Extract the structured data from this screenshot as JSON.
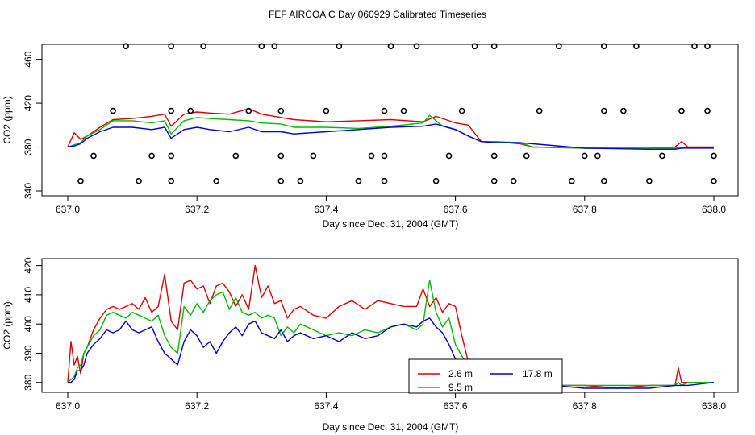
{
  "title": "FEF AIRCOA C  Day 060929  Calibrated Timeseries",
  "colors": {
    "2.6 m": "#dd0000",
    "9.5 m": "#00bb00",
    "17.8 m": "#0000cc",
    "flags": "#000000"
  },
  "chart_data": [
    {
      "type": "line",
      "xlabel": "Day since Dec. 31, 2004 (GMT)",
      "ylabel": "CO2 (ppm)",
      "xlim": [
        637.0,
        638.0
      ],
      "ylim": [
        340,
        470
      ],
      "xticks": [
        "637.0",
        "637.2",
        "637.4",
        "637.6",
        "637.8",
        "638.0"
      ],
      "yticks": [
        "340",
        "380",
        "420",
        "460"
      ],
      "grid": false,
      "series": [
        {
          "name": "2.6 m",
          "x": [
            637.0,
            637.01,
            637.02,
            637.03,
            637.05,
            637.07,
            637.1,
            637.13,
            637.15,
            637.16,
            637.18,
            637.2,
            637.22,
            637.25,
            637.28,
            637.3,
            637.33,
            637.35,
            637.4,
            637.45,
            637.5,
            637.55,
            637.57,
            637.6,
            637.62,
            637.64,
            637.66,
            637.7,
            637.72,
            637.8,
            637.9,
            637.94,
            637.95,
            637.96,
            638.0
          ],
          "values": [
            380,
            393,
            387,
            390,
            398,
            405,
            406,
            408,
            410,
            399,
            410,
            412,
            411,
            410,
            415,
            410,
            407,
            405,
            403,
            404,
            405,
            403,
            408,
            402,
            400,
            385,
            385,
            383,
            380,
            379,
            379,
            380,
            385,
            380,
            380
          ]
        },
        {
          "name": "9.5 m",
          "x": [
            637.0,
            637.01,
            637.02,
            637.03,
            637.05,
            637.07,
            637.1,
            637.13,
            637.15,
            637.16,
            637.18,
            637.2,
            637.22,
            637.25,
            637.28,
            637.3,
            637.33,
            637.35,
            637.4,
            637.45,
            637.5,
            637.55,
            637.56,
            637.58,
            637.6,
            637.62,
            637.64,
            637.66,
            637.7,
            637.72,
            637.8,
            637.9,
            637.94,
            637.95,
            637.96,
            638.0
          ],
          "values": [
            380,
            382,
            384,
            390,
            396,
            404,
            404,
            402,
            404,
            392,
            404,
            407,
            406,
            405,
            404,
            402,
            401,
            398,
            398,
            397,
            399,
            402,
            409,
            399,
            396,
            390,
            385,
            385,
            384,
            380,
            379,
            379,
            379,
            380,
            379,
            380
          ]
        },
        {
          "name": "17.8 m",
          "x": [
            637.0,
            637.01,
            637.02,
            637.03,
            637.05,
            637.07,
            637.1,
            637.13,
            637.15,
            637.16,
            637.18,
            637.2,
            637.22,
            637.25,
            637.28,
            637.3,
            637.33,
            637.35,
            637.4,
            637.45,
            637.5,
            637.55,
            637.57,
            637.6,
            637.62,
            637.64,
            637.66,
            637.7,
            637.72,
            637.8,
            637.9,
            637.94,
            637.95,
            637.96,
            638.0
          ],
          "values": [
            380,
            381,
            383,
            388,
            394,
            398,
            398,
            396,
            398,
            388,
            396,
            398,
            396,
            394,
            398,
            394,
            394,
            392,
            394,
            396,
            398,
            399,
            401,
            396,
            390,
            385,
            384,
            384,
            383,
            379,
            378,
            378,
            379,
            379,
            379
          ]
        }
      ],
      "flags": {
        "x": [
          637.09,
          637.16,
          637.21,
          637.3,
          637.32,
          637.42,
          637.5,
          637.54,
          637.63,
          637.66,
          637.76,
          637.83,
          637.88,
          637.97,
          637.99,
          637.07,
          637.16,
          637.19,
          637.28,
          637.33,
          637.4,
          637.49,
          637.52,
          637.61,
          637.73,
          637.83,
          637.86,
          637.95,
          637.99,
          637.04,
          637.13,
          637.16,
          637.26,
          637.33,
          637.38,
          637.47,
          637.49,
          637.59,
          637.66,
          637.71,
          637.8,
          637.82,
          637.92,
          638.0,
          637.02,
          637.11,
          637.16,
          637.23,
          637.33,
          637.36,
          637.45,
          637.49,
          637.57,
          637.66,
          637.69,
          637.78,
          637.83,
          637.9,
          638.0
        ],
        "values": [
          472,
          472,
          472,
          472,
          472,
          472,
          472,
          472,
          472,
          472,
          472,
          472,
          472,
          472,
          472,
          413,
          413,
          413,
          413,
          413,
          413,
          413,
          413,
          413,
          413,
          413,
          413,
          413,
          413,
          372,
          372,
          372,
          372,
          372,
          372,
          372,
          372,
          372,
          372,
          372,
          372,
          372,
          372,
          372,
          349,
          349,
          349,
          349,
          349,
          349,
          349,
          349,
          349,
          349,
          349,
          349,
          349,
          349,
          349
        ]
      }
    },
    {
      "type": "line",
      "xlabel": "Day since Dec. 31, 2004 (GMT)",
      "ylabel": "CO2 (ppm)",
      "xlim": [
        637.0,
        638.0
      ],
      "ylim": [
        378,
        421
      ],
      "xticks": [
        "637.0",
        "637.2",
        "637.4",
        "637.6",
        "637.8",
        "638.0"
      ],
      "yticks": [
        "380",
        "390",
        "400",
        "410",
        "420"
      ],
      "grid": false,
      "legend": {
        "position": "bottom-center",
        "entries": [
          "2.6 m",
          "9.5 m",
          "17.8 m"
        ]
      },
      "series": [
        {
          "name": "2.6 m",
          "x": [
            637.0,
            637.005,
            637.01,
            637.015,
            637.02,
            637.025,
            637.03,
            637.04,
            637.05,
            637.06,
            637.07,
            637.08,
            637.09,
            637.1,
            637.11,
            637.12,
            637.13,
            637.14,
            637.15,
            637.16,
            637.17,
            637.18,
            637.19,
            637.2,
            637.21,
            637.22,
            637.23,
            637.24,
            637.25,
            637.26,
            637.27,
            637.28,
            637.29,
            637.3,
            637.31,
            637.32,
            637.33,
            637.34,
            637.35,
            637.36,
            637.38,
            637.4,
            637.42,
            637.44,
            637.46,
            637.48,
            637.5,
            637.52,
            637.54,
            637.55,
            637.56,
            637.57,
            637.58,
            637.59,
            637.6,
            637.61,
            637.62,
            637.63,
            637.64,
            637.65,
            637.67,
            637.69,
            637.7,
            637.71,
            637.72,
            637.75,
            637.8,
            637.85,
            637.9,
            637.94,
            637.945,
            637.95,
            637.96,
            638.0
          ],
          "values": [
            380,
            394,
            386,
            389,
            383,
            390,
            392,
            398,
            402,
            405,
            406,
            405,
            406,
            407,
            405,
            409,
            404,
            406,
            417,
            401,
            398,
            414,
            415,
            412,
            413,
            407,
            413,
            414,
            411,
            406,
            410,
            405,
            420,
            409,
            413,
            407,
            408,
            402,
            405,
            406,
            403,
            402,
            406,
            408,
            405,
            408,
            407,
            406,
            406,
            412,
            406,
            409,
            404,
            407,
            406,
            396,
            387,
            385,
            384,
            385,
            384,
            386,
            385,
            383,
            380,
            379,
            379,
            378,
            379,
            379,
            385,
            380,
            380,
            380
          ]
        },
        {
          "name": "9.5 m",
          "x": [
            637.0,
            637.005,
            637.01,
            637.015,
            637.02,
            637.025,
            637.03,
            637.04,
            637.05,
            637.06,
            637.07,
            637.08,
            637.09,
            637.1,
            637.11,
            637.12,
            637.13,
            637.14,
            637.15,
            637.16,
            637.17,
            637.18,
            637.19,
            637.2,
            637.21,
            637.22,
            637.23,
            637.24,
            637.25,
            637.26,
            637.27,
            637.28,
            637.29,
            637.3,
            637.31,
            637.32,
            637.33,
            637.34,
            637.35,
            637.36,
            637.38,
            637.4,
            637.42,
            637.44,
            637.46,
            637.48,
            637.5,
            637.52,
            637.54,
            637.55,
            637.56,
            637.57,
            637.58,
            637.59,
            637.6,
            637.61,
            637.62,
            637.63,
            637.64,
            637.65,
            637.67,
            637.69,
            637.7,
            637.71,
            637.72,
            637.75,
            637.8,
            637.85,
            637.9,
            637.94,
            637.945,
            637.95,
            637.96,
            638.0
          ],
          "values": [
            380,
            381,
            382,
            385,
            386,
            390,
            392,
            396,
            398,
            403,
            404,
            403,
            402,
            404,
            403,
            402,
            401,
            403,
            396,
            392,
            390,
            406,
            403,
            407,
            404,
            408,
            410,
            411,
            405,
            409,
            404,
            403,
            404,
            402,
            403,
            402,
            396,
            399,
            397,
            400,
            398,
            396,
            397,
            396,
            398,
            397,
            399,
            400,
            398,
            400,
            415,
            404,
            399,
            402,
            393,
            389,
            386,
            385,
            384,
            384,
            385,
            385,
            385,
            382,
            380,
            379,
            379,
            379,
            379,
            379,
            380,
            379,
            380,
            380
          ]
        },
        {
          "name": "17.8 m",
          "x": [
            637.0,
            637.005,
            637.01,
            637.015,
            637.02,
            637.025,
            637.03,
            637.04,
            637.05,
            637.06,
            637.07,
            637.08,
            637.09,
            637.1,
            637.11,
            637.12,
            637.13,
            637.14,
            637.15,
            637.16,
            637.17,
            637.18,
            637.19,
            637.2,
            637.21,
            637.22,
            637.23,
            637.24,
            637.25,
            637.26,
            637.27,
            637.28,
            637.29,
            637.3,
            637.31,
            637.32,
            637.33,
            637.34,
            637.35,
            637.36,
            637.38,
            637.4,
            637.42,
            637.44,
            637.46,
            637.48,
            637.5,
            637.52,
            637.54,
            637.55,
            637.56,
            637.57,
            637.58,
            637.59,
            637.6,
            637.61,
            637.62,
            637.63,
            637.64,
            637.65,
            637.67,
            637.69,
            637.7,
            637.71,
            637.72,
            637.75,
            637.8,
            637.85,
            637.9,
            637.94,
            637.945,
            637.95,
            637.96,
            638.0
          ],
          "values": [
            380,
            380,
            381,
            384,
            384,
            386,
            390,
            393,
            395,
            398,
            397,
            398,
            401,
            398,
            397,
            398,
            399,
            394,
            390,
            388,
            386,
            394,
            398,
            396,
            392,
            394,
            390,
            394,
            397,
            399,
            396,
            400,
            401,
            397,
            396,
            395,
            398,
            394,
            396,
            397,
            395,
            396,
            394,
            397,
            395,
            396,
            399,
            400,
            399,
            401,
            402,
            399,
            397,
            393,
            388,
            386,
            385,
            384,
            384,
            384,
            385,
            384,
            384,
            381,
            379,
            379,
            378,
            378,
            378,
            379,
            379,
            379,
            379,
            380
          ]
        }
      ]
    }
  ]
}
